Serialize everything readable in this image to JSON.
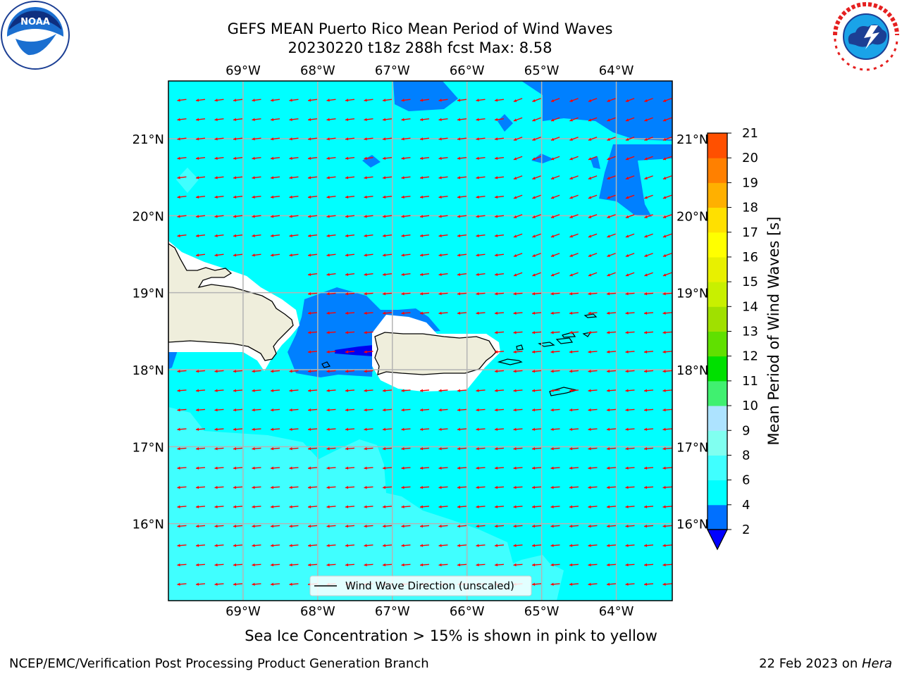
{
  "header": {
    "title_line1": "GEFS MEAN Puerto Rico Mean Period of Wind Waves",
    "title_line2": "20230220 t18z 288h fcst   Max: 8.58"
  },
  "logos": {
    "left": {
      "text": "NOAA",
      "ring_text": "NATIONAL OCEANIC AND ATMOSPHERIC ADMINISTRATION · U.S. DEPARTMENT OF COMMERCE"
    },
    "right": {
      "ring_text": "NATIONAL WEATHER SERVICE"
    }
  },
  "map": {
    "lon_labels": [
      "69°W",
      "68°W",
      "67°W",
      "66°W",
      "65°W",
      "64°W"
    ],
    "lat_labels": [
      "21°N",
      "20°N",
      "19°N",
      "18°N",
      "17°N",
      "16°N"
    ],
    "lon_values": [
      -69,
      -68,
      -67,
      -66,
      -65,
      -64
    ],
    "lat_values": [
      21,
      20,
      19,
      18,
      17,
      16
    ],
    "extent": {
      "lon_min": -70,
      "lon_max": -63.25,
      "lat_min": 15,
      "lat_max": 21.75
    },
    "legend_label": "Wind Wave Direction (unscaled)",
    "colors": {
      "ocean_main": "#00ffff",
      "ocean_6_8": "#40ffff",
      "ocean_2_4": "#0080ff",
      "ocean_lt2": "#0000f0",
      "land": "#efeedc",
      "arrow": "#ff0000",
      "grid": "#b4b4b4"
    }
  },
  "colorbar": {
    "label": "Mean Period of Wind Waves [s]",
    "ticks": [
      "2",
      "4",
      "6",
      "8",
      "9",
      "10",
      "11",
      "12",
      "13",
      "14",
      "15",
      "16",
      "17",
      "18",
      "19",
      "20",
      "21"
    ],
    "colors": [
      "#0070ff",
      "#00ffff",
      "#40ffff",
      "#80fff0",
      "#ade3ff",
      "#40f070",
      "#00e000",
      "#60e000",
      "#a0e000",
      "#c8f000",
      "#e8f000",
      "#ffff00",
      "#ffe000",
      "#ffb000",
      "#ff8000",
      "#ff5000",
      "#ff1000",
      "#ff0000"
    ],
    "extend_color": "#0000ff"
  },
  "notes": {
    "sea_ice": "Sea Ice Concentration > 15% is shown in pink to yellow",
    "credit": "NCEP/EMC/Verification Post Processing Product Generation Branch",
    "date_prefix": "22 Feb 2023 on ",
    "host": "Hera"
  }
}
